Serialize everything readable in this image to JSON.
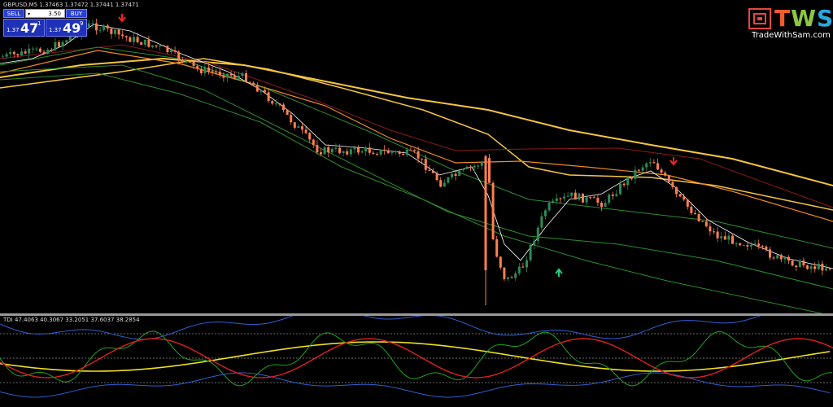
{
  "header": {
    "symbol_line": "GBPUSD,M5  1.37463 1.37472 1.37441 1.37471"
  },
  "trade_panel": {
    "sell_label": "SELL",
    "buy_label": "BUY",
    "lot_value": "3.50",
    "bid_prefix": "1.37",
    "bid_big": "47",
    "bid_sup": "1",
    "ask_prefix": "1.37",
    "ask_big": "49",
    "ask_sup": "9"
  },
  "logo": {
    "text_t": "T",
    "text_w": "W",
    "text_s": "S",
    "url": "TradeWithSam.com"
  },
  "indicator": {
    "label": "TDI 47.4063 40.3067 33.2051 37.6037 38.2854"
  },
  "colors": {
    "background": "#000000",
    "bull_candle": "#2e8b57",
    "bear_candle": "#ff7f50",
    "ma_yellow": "#f5c542",
    "ma_orange": "#f08a24",
    "ma_red": "#8b1a1a",
    "band_green": "#2e8b2e",
    "fast_line": "#ffffff",
    "tdi_green": "#1fa31f",
    "tdi_red": "#e02020",
    "tdi_yellow": "#f0e020",
    "tdi_blue": "#3060d0",
    "arrow_down": "#ff2020",
    "arrow_up": "#20d080"
  }
}
